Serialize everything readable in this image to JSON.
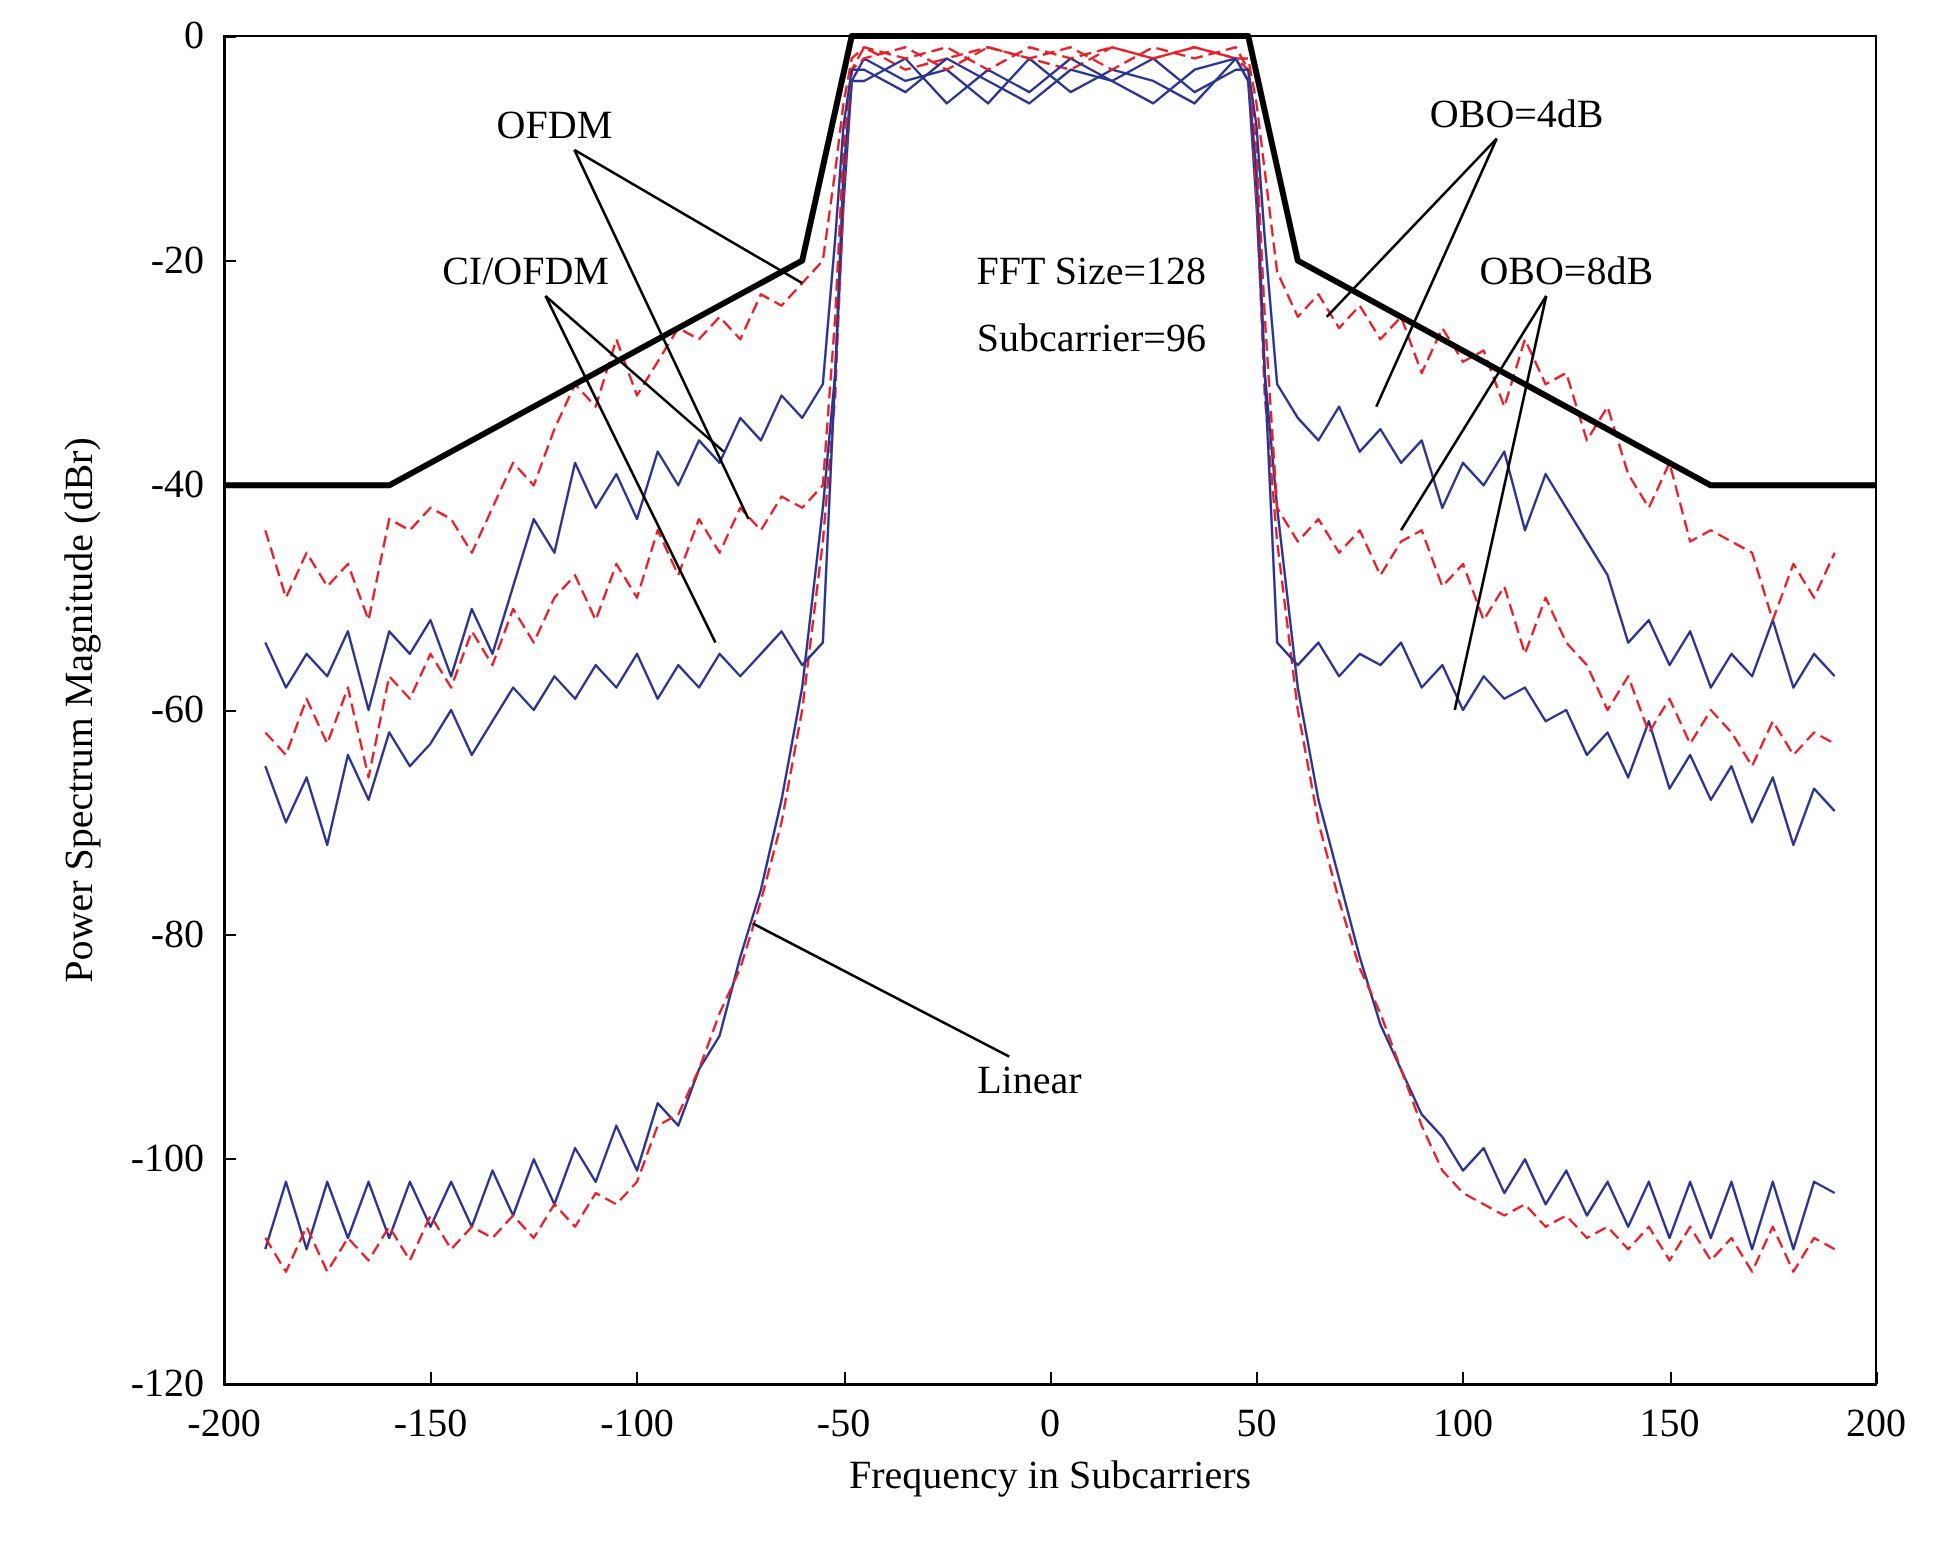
{
  "chart_data": {
    "type": "line",
    "xlabel": "Frequency in Subcarriers",
    "ylabel": "Power Spectrum Magnitude (dBr)",
    "xlim": [
      -200,
      200
    ],
    "xticks": [
      -200,
      -150,
      -100,
      -50,
      0,
      50,
      100,
      150,
      200
    ],
    "ylim": [
      -120,
      0
    ],
    "yticks": [
      -120,
      -100,
      -80,
      -60,
      -40,
      -20,
      0
    ],
    "marker": "none",
    "annotations": [
      {
        "text": "OFDM",
        "x": -60,
        "y": -22
      },
      {
        "text": "CI/OFDM",
        "x": -79,
        "y": -37
      },
      {
        "text": "OBO=4dB",
        "x": 67,
        "y": -25
      },
      {
        "text": "OBO=8dB",
        "x": 85,
        "y": -44
      },
      {
        "text": "Linear",
        "x": -72,
        "y": -79
      },
      "FFT Size=128",
      "Subcarrier=96"
    ],
    "x": [
      -190,
      -185,
      -180,
      -175,
      -170,
      -165,
      -160,
      -155,
      -150,
      -145,
      -140,
      -135,
      -130,
      -125,
      -120,
      -115,
      -110,
      -105,
      -100,
      -95,
      -90,
      -85,
      -80,
      -75,
      -70,
      -65,
      -60,
      -55,
      -52,
      -50,
      -48,
      -45,
      -35,
      -25,
      -15,
      -5,
      5,
      15,
      25,
      35,
      45,
      48,
      50,
      52,
      55,
      60,
      65,
      70,
      75,
      80,
      85,
      90,
      95,
      100,
      105,
      110,
      115,
      120,
      125,
      130,
      135,
      140,
      145,
      150,
      155,
      160,
      165,
      170,
      175,
      180,
      185,
      190
    ],
    "series": [
      {
        "color": "#2b3590",
        "line_style": "solid",
        "values": [
          -108,
          -102,
          -108,
          -102,
          -107,
          -102,
          -107,
          -102,
          -106,
          -102,
          -106,
          -101,
          -105,
          -100,
          -104,
          -99,
          -102,
          -97,
          -101,
          -95,
          -97,
          -92,
          -89,
          -82,
          -76,
          -68,
          -58,
          -42,
          -30,
          -15,
          -4,
          -2,
          -4,
          -3,
          -6,
          -2,
          -5,
          -3,
          -4,
          -6,
          -2,
          -4,
          -15,
          -30,
          -42,
          -58,
          -68,
          -75,
          -82,
          -88,
          -92,
          -96,
          -98,
          -101,
          -99,
          -103,
          -100,
          -104,
          -101,
          -105,
          -102,
          -106,
          -102,
          -107,
          -102,
          -107,
          -102,
          -108,
          -102,
          -108,
          -102,
          -103
        ]
      },
      {
        "color": "#e8202a",
        "line_style": "dashed",
        "values": [
          -107,
          -110,
          -106,
          -110,
          -107,
          -109,
          -106,
          -109,
          -105,
          -108,
          -106,
          -107,
          -105,
          -107,
          -104,
          -106,
          -103,
          -104,
          -102,
          -97,
          -96,
          -92,
          -87,
          -83,
          -77,
          -70,
          -60,
          -45,
          -32,
          -14,
          -3,
          -1,
          -3,
          -2,
          -1,
          -2,
          -3,
          -1,
          -2,
          -1,
          -2,
          -3,
          -14,
          -32,
          -45,
          -60,
          -70,
          -77,
          -83,
          -87,
          -92,
          -97,
          -101,
          -103,
          -104,
          -105,
          -104,
          -106,
          -105,
          -107,
          -106,
          -108,
          -106,
          -109,
          -106,
          -109,
          -107,
          -110,
          -106,
          -110,
          -107,
          -108
        ]
      },
      {
        "color": "#2b3590",
        "line_style": "solid",
        "values": [
          -65,
          -70,
          -66,
          -72,
          -64,
          -68,
          -62,
          -65,
          -63,
          -60,
          -64,
          -61,
          -58,
          -60,
          -57,
          -59,
          -56,
          -58,
          -55,
          -59,
          -56,
          -58,
          -55,
          -57,
          -55,
          -53,
          -56,
          -54,
          -30,
          -12,
          -4,
          -4,
          -2,
          -6,
          -3,
          -5,
          -2,
          -4,
          -6,
          -3,
          -2,
          -4,
          -12,
          -30,
          -54,
          -56,
          -54,
          -57,
          -55,
          -56,
          -54,
          -58,
          -56,
          -60,
          -57,
          -59,
          -58,
          -61,
          -60,
          -64,
          -62,
          -66,
          -61,
          -67,
          -64,
          -68,
          -65,
          -70,
          -66,
          -72,
          -67,
          -69
        ]
      },
      {
        "color": "#e8202a",
        "line_style": "dashed",
        "values": [
          -62,
          -64,
          -59,
          -63,
          -58,
          -66,
          -57,
          -59,
          -55,
          -58,
          -53,
          -56,
          -51,
          -54,
          -50,
          -48,
          -52,
          -47,
          -50,
          -44,
          -48,
          -43,
          -46,
          -42,
          -44,
          -41,
          -42,
          -40,
          -25,
          -10,
          -3,
          -2,
          -1,
          -3,
          -1,
          -2,
          -1,
          -3,
          -1,
          -2,
          -1,
          -3,
          -10,
          -25,
          -42,
          -45,
          -43,
          -46,
          -44,
          -48,
          -45,
          -44,
          -49,
          -47,
          -52,
          -49,
          -55,
          -50,
          -54,
          -56,
          -60,
          -57,
          -62,
          -59,
          -63,
          -60,
          -62,
          -65,
          -61,
          -64,
          -62,
          -63
        ]
      },
      {
        "color": "#2b3590",
        "line_style": "solid",
        "values": [
          -54,
          -58,
          -55,
          -57,
          -53,
          -60,
          -53,
          -55,
          -52,
          -57,
          -51,
          -55,
          -49,
          -43,
          -46,
          -38,
          -42,
          -39,
          -43,
          -37,
          -40,
          -36,
          -38,
          -34,
          -36,
          -32,
          -34,
          -31,
          -18,
          -8,
          -3,
          -3,
          -5,
          -2,
          -4,
          -6,
          -3,
          -4,
          -2,
          -5,
          -3,
          -3,
          -8,
          -18,
          -31,
          -34,
          -36,
          -33,
          -37,
          -35,
          -38,
          -36,
          -42,
          -38,
          -40,
          -37,
          -44,
          -39,
          -42,
          -45,
          -48,
          -54,
          -52,
          -56,
          -53,
          -58,
          -55,
          -57,
          -52,
          -58,
          -55,
          -57
        ]
      },
      {
        "color": "#e8202a",
        "line_style": "dashed",
        "values": [
          -44,
          -50,
          -46,
          -49,
          -47,
          -52,
          -43,
          -44,
          -42,
          -43,
          -46,
          -42,
          -38,
          -40,
          -35,
          -31,
          -33,
          -27,
          -32,
          -29,
          -26,
          -27,
          -25,
          -27,
          -23,
          -24,
          -22,
          -20,
          -12,
          -6,
          -2,
          -1,
          -2,
          -1,
          -3,
          -1,
          -2,
          -1,
          -2,
          -1,
          -2,
          -2,
          -6,
          -12,
          -21,
          -25,
          -23,
          -26,
          -24,
          -27,
          -25,
          -30,
          -26,
          -29,
          -28,
          -33,
          -27,
          -31,
          -30,
          -36,
          -33,
          -39,
          -42,
          -38,
          -45,
          -44,
          -45,
          -46,
          -52,
          -47,
          -50,
          -46
        ]
      },
      {
        "color": "#000000",
        "line_style": "solid",
        "x": [
          -200,
          -160,
          -60,
          -48,
          48,
          60,
          160,
          200
        ],
        "values": [
          -40,
          -40,
          -20,
          0,
          0,
          -20,
          -40,
          -40
        ]
      }
    ]
  }
}
